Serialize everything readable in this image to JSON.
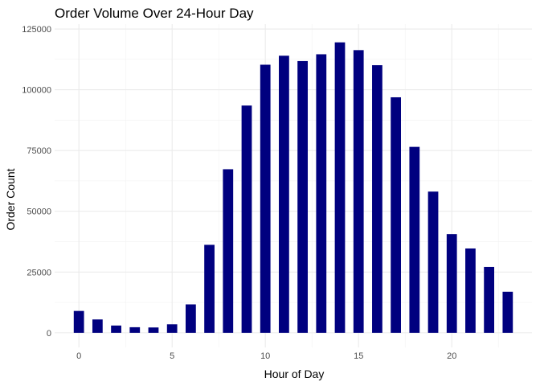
{
  "chart_data": {
    "type": "bar",
    "title": "Order Volume Over 24-Hour Day",
    "xlabel": "Hour of Day",
    "ylabel": "Order Count",
    "x": [
      0,
      1,
      2,
      3,
      4,
      5,
      6,
      7,
      8,
      9,
      10,
      11,
      12,
      13,
      14,
      15,
      16,
      17,
      18,
      19,
      20,
      21,
      22,
      23
    ],
    "values": [
      9000,
      5500,
      3000,
      2300,
      2200,
      3500,
      11700,
      36200,
      67300,
      93500,
      110300,
      114000,
      111800,
      114600,
      119500,
      116300,
      110100,
      96900,
      76500,
      58100,
      40600,
      34700,
      27100,
      16900
    ],
    "xlim": [
      -1.3,
      24.3
    ],
    "ylim": [
      -6000,
      127000
    ],
    "x_ticks": [
      0,
      5,
      10,
      15,
      20
    ],
    "x_tick_labels": [
      "0",
      "5",
      "10",
      "15",
      "20"
    ],
    "y_ticks": [
      0,
      25000,
      50000,
      75000,
      100000,
      125000
    ],
    "y_tick_labels": [
      "0",
      "25000",
      "50000",
      "75000",
      "100000",
      "125000"
    ],
    "bar_color": "#00007F",
    "grid": true,
    "legend": "none"
  }
}
